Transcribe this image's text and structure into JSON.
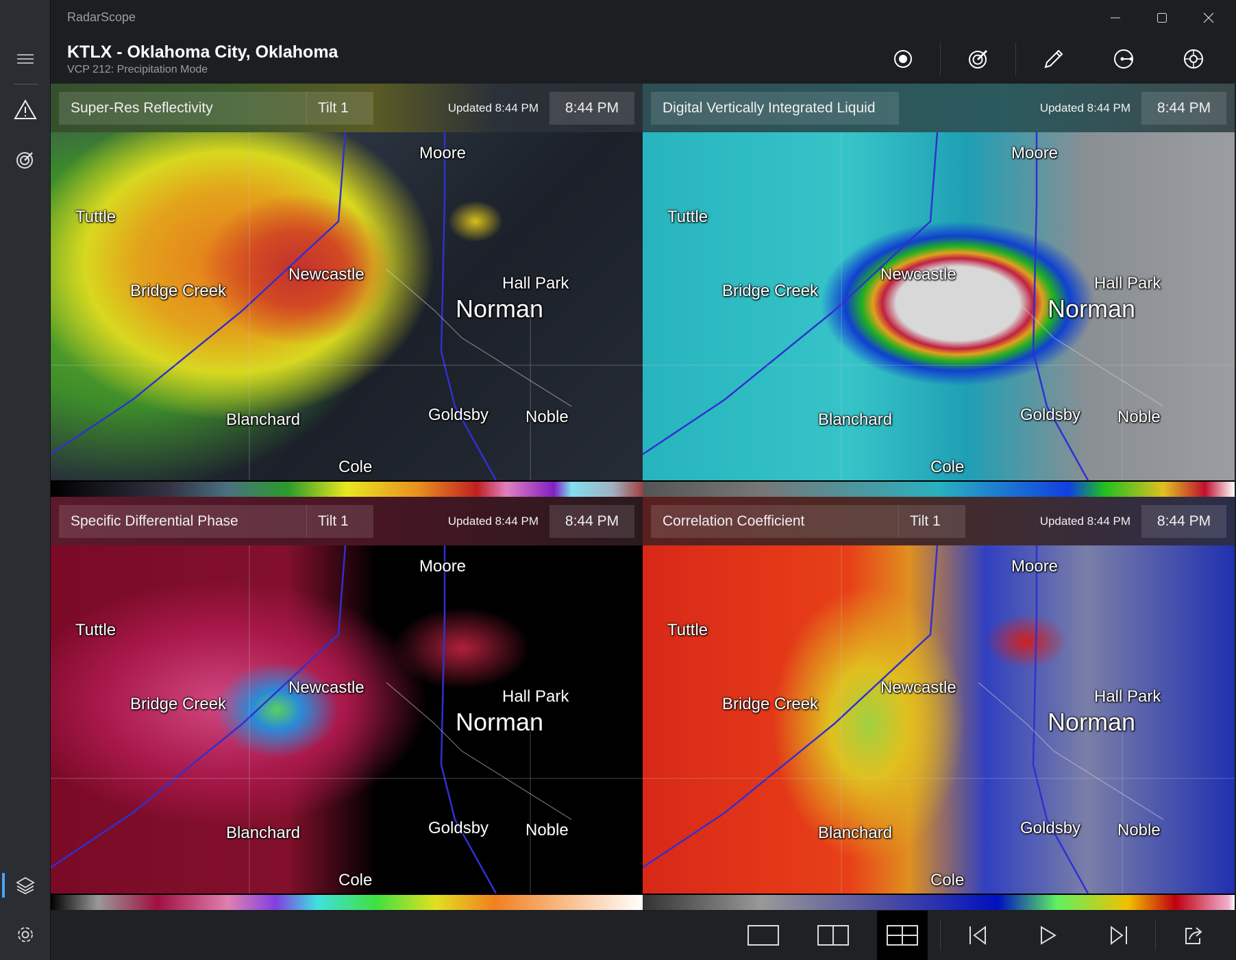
{
  "app": {
    "name": "RadarScope"
  },
  "header": {
    "title": "KTLX - Oklahoma City, Oklahoma",
    "subtitle": "VCP 212: Precipitation Mode"
  },
  "toolbar": [
    "record-icon",
    "radar-icon",
    "pencil-icon",
    "location-line-icon",
    "crosshair-icon"
  ],
  "sidebar": [
    "menu-icon",
    "warning-icon",
    "radar-icon",
    "layers-icon",
    "settings-icon"
  ],
  "panels": [
    {
      "product": "Super-Res Reflectivity",
      "tilt": "Tilt 1",
      "updated": "Updated 8:44 PM",
      "time": "8:44 PM"
    },
    {
      "product": "Digital Vertically Integrated Liquid",
      "tilt": "",
      "updated": "Updated 8:44 PM",
      "time": "8:44 PM"
    },
    {
      "product": "Specific Differential Phase",
      "tilt": "Tilt 1",
      "updated": "Updated 8:44 PM",
      "time": "8:44 PM"
    },
    {
      "product": "Correlation Coefficient",
      "tilt": "Tilt 1",
      "updated": "Updated 8:44 PM",
      "time": "8:44 PM"
    }
  ],
  "map_labels": [
    "Moore",
    "Tuttle",
    "Bridge Creek",
    "Newcastle",
    "Hall Park",
    "Norman",
    "Blanchard",
    "Goldsby",
    "Noble",
    "Cole"
  ],
  "bottombar": {
    "layout_selected": "four-panel",
    "buttons": [
      "single-panel-icon",
      "two-panel-icon",
      "four-panel-icon",
      "skip-back-icon",
      "play-icon",
      "skip-forward-icon",
      "share-icon"
    ]
  }
}
